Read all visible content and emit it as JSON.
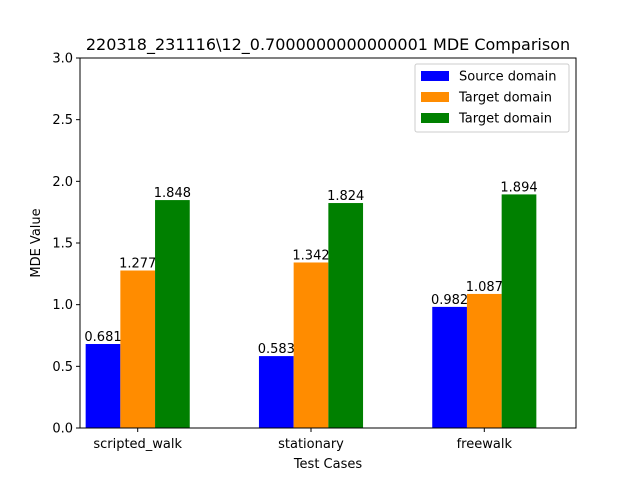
{
  "chart_data": {
    "type": "bar",
    "title": "220318_231116\\12_0.7000000000000001 MDE Comparison",
    "xlabel": "Test Cases",
    "ylabel": "MDE Value",
    "categories": [
      "scripted_walk",
      "stationary",
      "freewalk"
    ],
    "ylim": [
      0,
      3.0
    ],
    "yticks": [
      "0.0",
      "0.5",
      "1.0",
      "1.5",
      "2.0",
      "2.5",
      "3.0"
    ],
    "grid": false,
    "legend_position": "top-right",
    "series": [
      {
        "name": "Source domain",
        "color": "#0000ff",
        "values": [
          0.681,
          0.583,
          0.982
        ],
        "labels": [
          "0.681",
          "0.583",
          "0.982"
        ]
      },
      {
        "name": "Target domain",
        "color": "#ff8c00",
        "values": [
          1.277,
          1.342,
          1.087
        ],
        "labels": [
          "1.277",
          "1.342",
          "1.087"
        ]
      },
      {
        "name": "Target domain",
        "color": "#008000",
        "values": [
          1.848,
          1.824,
          1.894
        ],
        "labels": [
          "1.848",
          "1.824",
          "1.894"
        ]
      }
    ]
  }
}
